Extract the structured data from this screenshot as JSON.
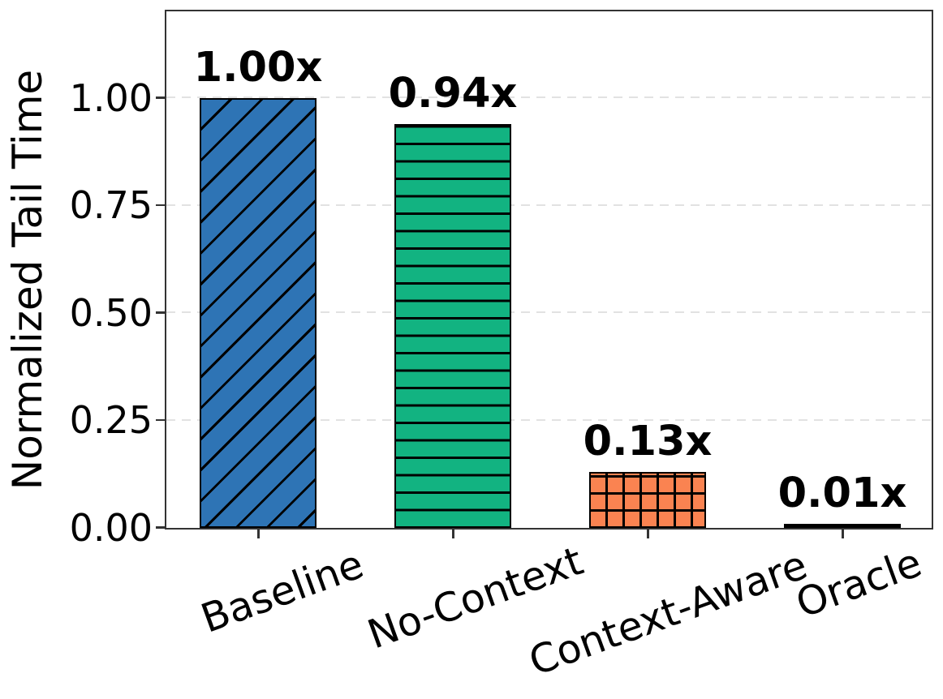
{
  "chart_data": {
    "type": "bar",
    "title": "",
    "xlabel": "",
    "ylabel": "Normalized Tail Time",
    "categories": [
      "Baseline",
      "No-Context",
      "Context-Aware",
      "Oracle"
    ],
    "values": [
      1.0,
      0.94,
      0.13,
      0.01
    ],
    "bar_value_labels": [
      "1.00x",
      "0.94x",
      "0.13x",
      "0.01x"
    ],
    "ytick_labels": [
      "0.00",
      "0.25",
      "0.50",
      "0.75",
      "1.00"
    ],
    "ylim": [
      0.0,
      1.2
    ],
    "grid": "horizontal dashed",
    "legend": "none",
    "bar_colors": [
      "#2e74b5",
      "#12b381",
      "#fa8351",
      "#000000"
    ],
    "hatch_patterns": [
      "/",
      "-",
      "+",
      "none"
    ],
    "bar_edge_color": "#000000",
    "axis_color": "#333333",
    "grid_color": "#e2e2e2",
    "text_color": "#000000",
    "xtick_label_rotation_deg": 20
  }
}
